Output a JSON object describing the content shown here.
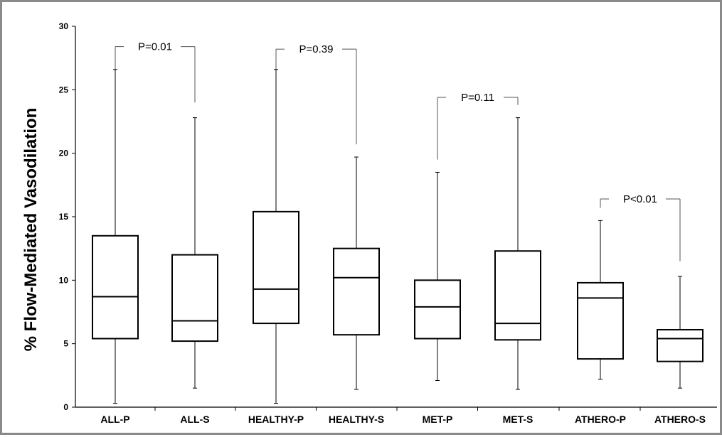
{
  "chart_data": {
    "type": "boxplot",
    "title": "",
    "xlabel": "",
    "ylabel": "% Flow-Mediated Vasodilation",
    "ylim": [
      0,
      30
    ],
    "yticks": [
      0,
      5,
      10,
      15,
      20,
      25,
      30
    ],
    "grid": false,
    "legend": "none",
    "categories": [
      "ALL-P",
      "ALL-S",
      "HEALTHY-P",
      "HEALTHY-S",
      "MET-P",
      "MET-S",
      "ATHERO-P",
      "ATHERO-S"
    ],
    "boxes": [
      {
        "min": 0.3,
        "q1": 5.4,
        "median": 8.7,
        "q3": 13.5,
        "max": 26.6
      },
      {
        "min": 1.5,
        "q1": 5.2,
        "median": 6.8,
        "q3": 12.0,
        "max": 22.8
      },
      {
        "min": 0.3,
        "q1": 6.6,
        "median": 9.3,
        "q3": 15.4,
        "max": 26.6
      },
      {
        "min": 1.4,
        "q1": 5.7,
        "median": 10.2,
        "q3": 12.5,
        "max": 19.7
      },
      {
        "min": 2.1,
        "q1": 5.4,
        "median": 7.9,
        "q3": 10.0,
        "max": 18.5
      },
      {
        "min": 1.4,
        "q1": 5.3,
        "median": 6.6,
        "q3": 12.3,
        "max": 22.8
      },
      {
        "min": 2.2,
        "q1": 3.8,
        "median": 8.6,
        "q3": 9.8,
        "max": 14.7
      },
      {
        "min": 1.5,
        "q1": 3.6,
        "median": 5.4,
        "q3": 6.1,
        "max": 10.3
      }
    ],
    "comparisons": [
      {
        "groups": [
          0,
          1
        ],
        "label": "P=0.01",
        "bracket_y": 28.4,
        "left_end": 26.6,
        "right_end": 24.0
      },
      {
        "groups": [
          2,
          3
        ],
        "label": "P=0.39",
        "bracket_y": 28.2,
        "left_end": 26.6,
        "right_end": 20.7
      },
      {
        "groups": [
          4,
          5
        ],
        "label": "P=0.11",
        "bracket_y": 24.4,
        "left_end": 19.5,
        "right_end": 23.8
      },
      {
        "groups": [
          6,
          7
        ],
        "label": "P<0.01",
        "bracket_y": 16.4,
        "left_end": 15.7,
        "right_end": 11.5
      }
    ]
  }
}
